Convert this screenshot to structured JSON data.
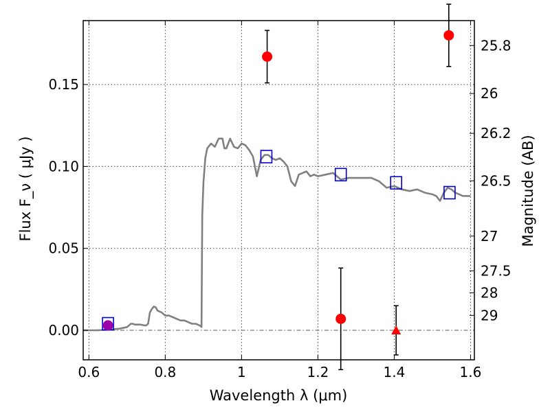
{
  "chart_data": {
    "type": "scatter",
    "xlabel": "Wavelength  λ (μm)",
    "ylabel": "Flux  F_ν  ( μJy )",
    "y2label": "Magnitude (AB)",
    "xlim": [
      0.585,
      1.61
    ],
    "ylim": [
      -0.018,
      0.189
    ],
    "grid": true,
    "x_ticks": [
      {
        "value": 0.6,
        "label": "0.6"
      },
      {
        "value": 0.8,
        "label": "0.8"
      },
      {
        "value": 1.0,
        "label": "1"
      },
      {
        "value": 1.2,
        "label": "1.2"
      },
      {
        "value": 1.4,
        "label": "1.4"
      },
      {
        "value": 1.6,
        "label": "1.6"
      }
    ],
    "y_ticks": [
      {
        "value": 0.0,
        "label": "0.00"
      },
      {
        "value": 0.05,
        "label": "0.05"
      },
      {
        "value": 0.1,
        "label": "0.10"
      },
      {
        "value": 0.15,
        "label": "0.15"
      }
    ],
    "mag_ticks": [
      {
        "label": "25.8",
        "flux": 0.1738
      },
      {
        "label": "26",
        "flux": 0.1445
      },
      {
        "label": "26.2",
        "flux": 0.1202
      },
      {
        "label": "26.5",
        "flux": 0.0912
      },
      {
        "label": "27",
        "flux": 0.0575
      },
      {
        "label": "27.5",
        "flux": 0.0363
      },
      {
        "label": "28",
        "flux": 0.0229
      },
      {
        "label": "29",
        "flux": 0.0091
      }
    ],
    "model_spectrum": {
      "color": "#808080",
      "x": [
        0.585,
        0.62,
        0.65,
        0.68,
        0.7,
        0.71,
        0.715,
        0.72,
        0.735,
        0.745,
        0.75,
        0.755,
        0.76,
        0.765,
        0.77,
        0.775,
        0.78,
        0.79,
        0.8,
        0.81,
        0.82,
        0.83,
        0.84,
        0.85,
        0.86,
        0.87,
        0.88,
        0.89,
        0.895,
        0.897,
        0.9,
        0.905,
        0.91,
        0.92,
        0.93,
        0.94,
        0.95,
        0.955,
        0.96,
        0.97,
        0.98,
        0.99,
        1.0,
        1.01,
        1.02,
        1.03,
        1.04,
        1.05,
        1.06,
        1.07,
        1.08,
        1.09,
        1.1,
        1.11,
        1.12,
        1.13,
        1.14,
        1.15,
        1.16,
        1.17,
        1.18,
        1.19,
        1.2,
        1.22,
        1.24,
        1.26,
        1.28,
        1.3,
        1.32,
        1.34,
        1.36,
        1.38,
        1.4,
        1.42,
        1.44,
        1.46,
        1.48,
        1.5,
        1.51,
        1.52,
        1.53,
        1.54,
        1.55,
        1.56,
        1.58,
        1.6
      ],
      "y": [
        0.0,
        0.0,
        0.0003,
        0.001,
        0.002,
        0.004,
        0.004,
        0.0035,
        0.0035,
        0.003,
        0.003,
        0.004,
        0.011,
        0.013,
        0.0145,
        0.014,
        0.012,
        0.011,
        0.009,
        0.009,
        0.008,
        0.007,
        0.006,
        0.006,
        0.005,
        0.004,
        0.004,
        0.003,
        0.002,
        0.07,
        0.09,
        0.105,
        0.111,
        0.114,
        0.112,
        0.117,
        0.117,
        0.111,
        0.111,
        0.117,
        0.112,
        0.111,
        0.114,
        0.113,
        0.11,
        0.106,
        0.094,
        0.104,
        0.107,
        0.107,
        0.105,
        0.104,
        0.105,
        0.103,
        0.1,
        0.091,
        0.088,
        0.095,
        0.096,
        0.097,
        0.094,
        0.095,
        0.094,
        0.095,
        0.096,
        0.092,
        0.093,
        0.093,
        0.093,
        0.093,
        0.091,
        0.087,
        0.088,
        0.086,
        0.085,
        0.086,
        0.084,
        0.083,
        0.082,
        0.079,
        0.084,
        0.087,
        0.086,
        0.084,
        0.082,
        0.082
      ]
    },
    "model_photometry": {
      "marker": "open-square",
      "color": "#0000cc",
      "x": [
        0.65,
        1.065,
        1.26,
        1.405,
        1.545
      ],
      "y": [
        0.004,
        0.106,
        0.095,
        0.09,
        0.084
      ]
    },
    "observed": {
      "color": "#ff0000",
      "points": [
        {
          "x": 0.65,
          "y": 0.003,
          "err": 0.002,
          "marker": "circle",
          "color": "#9900aa"
        },
        {
          "x": 1.067,
          "y": 0.167,
          "err": 0.016,
          "marker": "circle",
          "color": "#ff0000"
        },
        {
          "x": 1.26,
          "y": 0.007,
          "err": 0.031,
          "marker": "circle",
          "color": "#ff0000"
        },
        {
          "x": 1.405,
          "y": 0.0,
          "err": 0.015,
          "marker": "triangle",
          "color": "#ff0000"
        },
        {
          "x": 1.543,
          "y": 0.18,
          "err": 0.019,
          "marker": "circle",
          "color": "#ff0000"
        }
      ]
    },
    "zero_line": {
      "y": 0.0,
      "style": "dash-dot",
      "color": "#555555"
    }
  }
}
